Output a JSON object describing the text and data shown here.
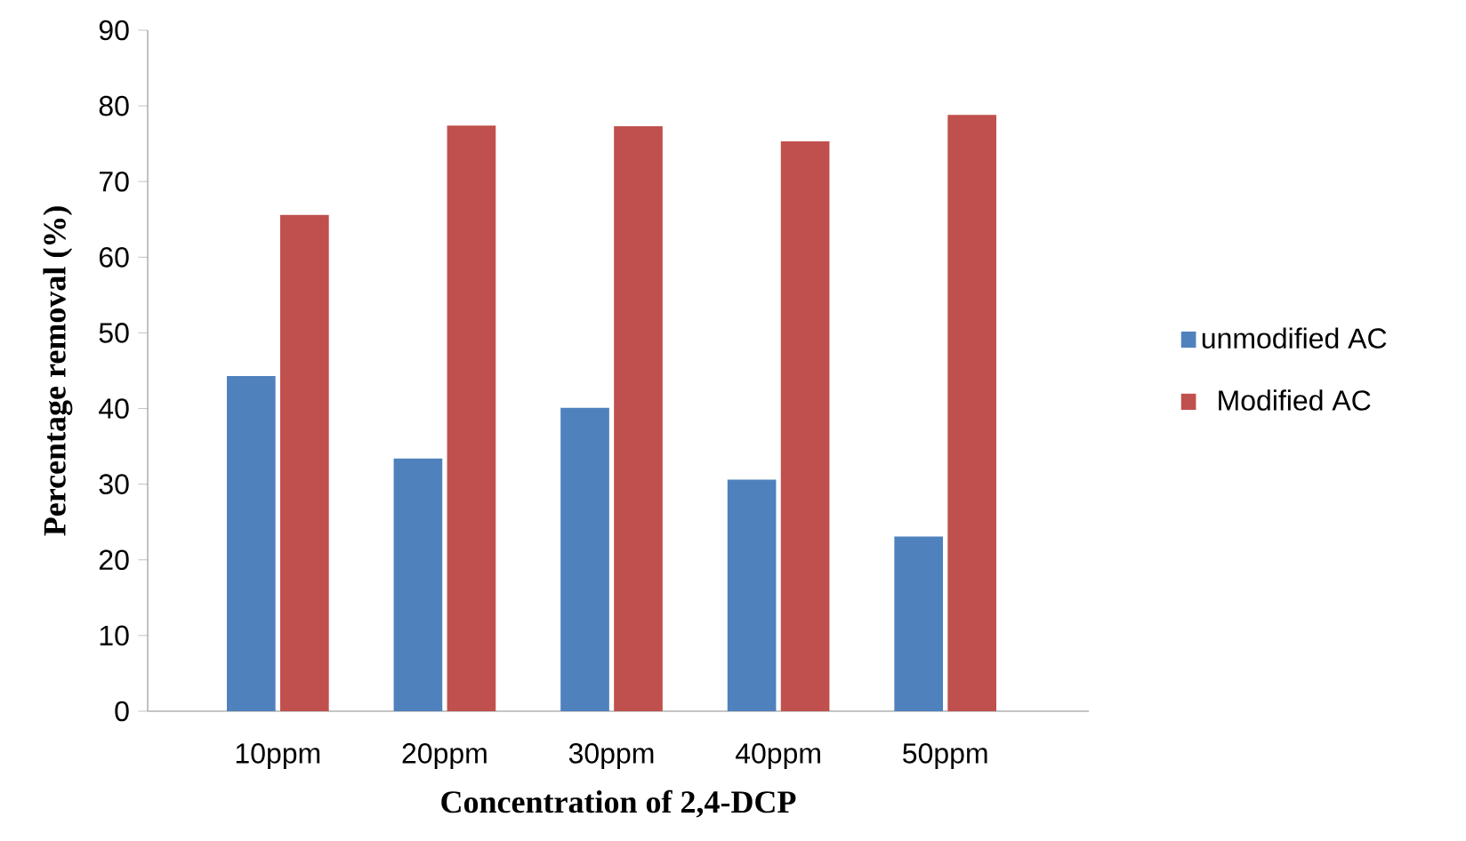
{
  "chart_data": {
    "type": "bar",
    "xlabel": "Concentration of 2,4-DCP",
    "ylabel": "Percentage removal (%)",
    "categories": [
      "10ppm",
      "20ppm",
      "30ppm",
      "40ppm",
      "50ppm"
    ],
    "series": [
      {
        "name": "unmodified AC",
        "color": "#4f81bd",
        "values": [
          44.3,
          33.4,
          40.1,
          30.6,
          23.1
        ]
      },
      {
        "name": "Modified AC",
        "color": "#c0504d",
        "values": [
          65.6,
          77.4,
          77.3,
          75.3,
          78.8
        ]
      }
    ],
    "ylim": [
      0,
      90
    ],
    "yticks": [
      0,
      10,
      20,
      30,
      40,
      50,
      60,
      70,
      80,
      90
    ],
    "grid": false,
    "legend": "right"
  }
}
